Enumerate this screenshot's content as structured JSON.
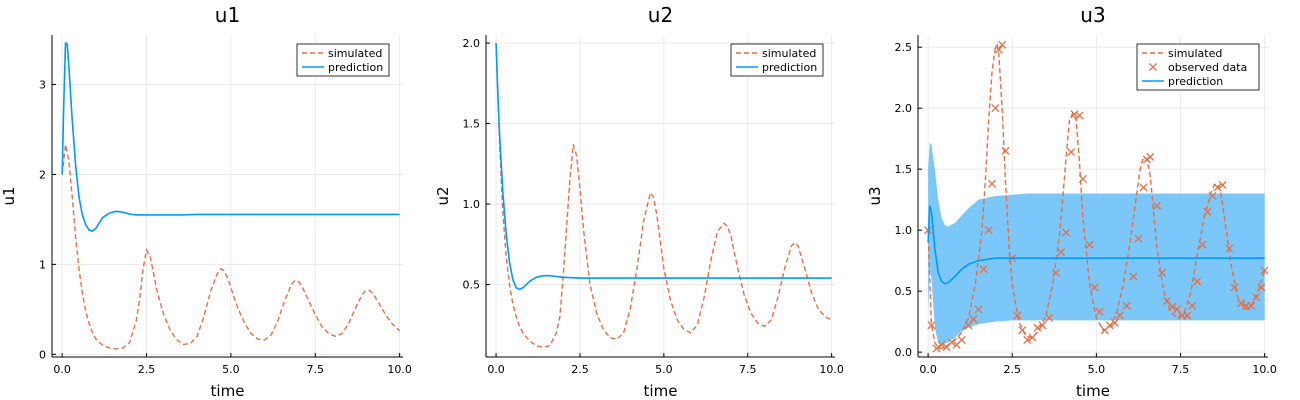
{
  "colors": {
    "simulated": "#e26f46",
    "observed": "#e26f46",
    "prediction": "#009af9",
    "band": "#7cc7f9",
    "grid": "#e6e6e6",
    "axis": "#000000",
    "legend_border": "#000000"
  },
  "chart_data": [
    {
      "type": "line",
      "title": "u1",
      "xlabel": "time",
      "ylabel": "u1",
      "xlim": [
        -0.3,
        10.1
      ],
      "ylim": [
        -0.03,
        3.55
      ],
      "xticks": [
        0.0,
        2.5,
        5.0,
        7.5,
        10.0
      ],
      "xtick_labels": [
        "0.0",
        "2.5",
        "5.0",
        "7.5",
        "10.0"
      ],
      "yticks": [
        0,
        1,
        2,
        3
      ],
      "ytick_labels": [
        "0",
        "1",
        "2",
        "3"
      ],
      "grid": true,
      "legend_position": "top-right",
      "legend": [
        "simulated",
        "prediction"
      ],
      "series": [
        {
          "name": "simulated",
          "style": "dashed",
          "x": [
            0.0,
            0.1,
            0.2,
            0.3,
            0.4,
            0.5,
            0.6,
            0.7,
            0.8,
            0.9,
            1.0,
            1.2,
            1.4,
            1.6,
            1.8,
            2.0,
            2.2,
            2.3,
            2.4,
            2.5,
            2.6,
            2.7,
            2.8,
            3.0,
            3.2,
            3.4,
            3.6,
            3.8,
            4.0,
            4.2,
            4.4,
            4.6,
            4.7,
            4.8,
            4.9,
            5.0,
            5.2,
            5.4,
            5.6,
            5.8,
            6.0,
            6.2,
            6.4,
            6.6,
            6.8,
            6.9,
            7.0,
            7.1,
            7.3,
            7.5,
            7.7,
            7.9,
            8.1,
            8.3,
            8.5,
            8.7,
            8.9,
            9.0,
            9.1,
            9.2,
            9.4,
            9.6,
            9.8,
            10.0
          ],
          "y": [
            2.0,
            2.33,
            2.15,
            1.75,
            1.3,
            0.95,
            0.68,
            0.48,
            0.34,
            0.24,
            0.17,
            0.1,
            0.07,
            0.06,
            0.07,
            0.13,
            0.38,
            0.62,
            0.95,
            1.16,
            1.1,
            0.92,
            0.72,
            0.45,
            0.27,
            0.16,
            0.11,
            0.12,
            0.2,
            0.42,
            0.7,
            0.9,
            0.95,
            0.93,
            0.85,
            0.74,
            0.52,
            0.35,
            0.23,
            0.17,
            0.16,
            0.22,
            0.38,
            0.6,
            0.78,
            0.82,
            0.81,
            0.76,
            0.6,
            0.44,
            0.31,
            0.23,
            0.2,
            0.23,
            0.35,
            0.52,
            0.67,
            0.71,
            0.71,
            0.68,
            0.56,
            0.43,
            0.33,
            0.26
          ]
        },
        {
          "name": "prediction",
          "style": "solid",
          "x": [
            0.0,
            0.05,
            0.1,
            0.15,
            0.2,
            0.3,
            0.4,
            0.5,
            0.6,
            0.7,
            0.8,
            0.9,
            1.0,
            1.1,
            1.2,
            1.4,
            1.6,
            1.8,
            2.0,
            2.2,
            2.5,
            3.0,
            3.5,
            4.0,
            5.0,
            6.0,
            7.0,
            8.0,
            9.0,
            10.0
          ],
          "y": [
            2.0,
            2.8,
            3.46,
            3.45,
            3.2,
            2.6,
            2.1,
            1.75,
            1.55,
            1.44,
            1.38,
            1.37,
            1.4,
            1.46,
            1.52,
            1.57,
            1.59,
            1.58,
            1.56,
            1.55,
            1.55,
            1.55,
            1.55,
            1.555,
            1.555,
            1.555,
            1.555,
            1.555,
            1.555,
            1.555
          ]
        }
      ]
    },
    {
      "type": "line",
      "title": "u2",
      "xlabel": "time",
      "ylabel": "u2",
      "xlim": [
        -0.3,
        10.1
      ],
      "ylim": [
        0.05,
        2.05
      ],
      "xticks": [
        0.0,
        2.5,
        5.0,
        7.5,
        10.0
      ],
      "xtick_labels": [
        "0.0",
        "2.5",
        "5.0",
        "7.5",
        "10.0"
      ],
      "yticks": [
        0.5,
        1.0,
        1.5,
        2.0
      ],
      "ytick_labels": [
        "0.5",
        "1.0",
        "1.5",
        "2.0"
      ],
      "grid": true,
      "legend_position": "top-right",
      "legend": [
        "simulated",
        "prediction"
      ],
      "series": [
        {
          "name": "simulated",
          "style": "dashed",
          "x": [
            0.0,
            0.05,
            0.1,
            0.2,
            0.3,
            0.4,
            0.5,
            0.6,
            0.7,
            0.8,
            1.0,
            1.2,
            1.4,
            1.6,
            1.8,
            1.9,
            2.0,
            2.1,
            2.2,
            2.3,
            2.4,
            2.5,
            2.6,
            2.8,
            3.0,
            3.2,
            3.4,
            3.6,
            3.8,
            4.0,
            4.2,
            4.4,
            4.6,
            4.7,
            4.8,
            5.0,
            5.2,
            5.4,
            5.6,
            5.8,
            6.0,
            6.2,
            6.4,
            6.6,
            6.8,
            6.9,
            7.0,
            7.2,
            7.4,
            7.6,
            7.8,
            8.0,
            8.2,
            8.4,
            8.6,
            8.8,
            8.9,
            9.0,
            9.2,
            9.4,
            9.6,
            9.8,
            10.0
          ],
          "y": [
            2.0,
            1.7,
            1.4,
            0.95,
            0.68,
            0.5,
            0.38,
            0.3,
            0.24,
            0.2,
            0.15,
            0.12,
            0.11,
            0.12,
            0.2,
            0.3,
            0.55,
            0.85,
            1.15,
            1.37,
            1.3,
            1.1,
            0.85,
            0.5,
            0.32,
            0.22,
            0.17,
            0.16,
            0.2,
            0.35,
            0.6,
            0.9,
            1.07,
            1.04,
            0.92,
            0.6,
            0.4,
            0.28,
            0.22,
            0.2,
            0.25,
            0.42,
            0.65,
            0.83,
            0.88,
            0.86,
            0.8,
            0.6,
            0.43,
            0.32,
            0.26,
            0.24,
            0.28,
            0.42,
            0.6,
            0.74,
            0.76,
            0.74,
            0.6,
            0.45,
            0.35,
            0.3,
            0.28
          ]
        },
        {
          "name": "prediction",
          "style": "solid",
          "x": [
            0.0,
            0.05,
            0.1,
            0.2,
            0.3,
            0.4,
            0.5,
            0.6,
            0.7,
            0.8,
            0.9,
            1.0,
            1.2,
            1.4,
            1.6,
            1.8,
            2.0,
            2.5,
            3.0,
            4.0,
            5.0,
            6.0,
            7.0,
            8.0,
            9.0,
            10.0
          ],
          "y": [
            2.0,
            1.7,
            1.45,
            1.08,
            0.82,
            0.64,
            0.53,
            0.48,
            0.47,
            0.48,
            0.5,
            0.52,
            0.545,
            0.555,
            0.555,
            0.55,
            0.545,
            0.54,
            0.54,
            0.54,
            0.54,
            0.54,
            0.54,
            0.54,
            0.54,
            0.54
          ]
        }
      ]
    },
    {
      "type": "line",
      "title": "u3",
      "xlabel": "time",
      "ylabel": "u3",
      "xlim": [
        -0.3,
        10.1
      ],
      "ylim": [
        -0.04,
        2.6
      ],
      "xticks": [
        0.0,
        2.5,
        5.0,
        7.5,
        10.0
      ],
      "xtick_labels": [
        "0.0",
        "2.5",
        "5.0",
        "7.5",
        "10.0"
      ],
      "yticks": [
        0.0,
        0.5,
        1.0,
        1.5,
        2.0,
        2.5
      ],
      "ytick_labels": [
        "0.0",
        "0.5",
        "1.0",
        "1.5",
        "2.0",
        "2.5"
      ],
      "grid": true,
      "legend_position": "top-right",
      "legend": [
        "simulated",
        "observed data",
        "prediction"
      ],
      "series": [
        {
          "name": "simulated",
          "style": "dashed",
          "x": [
            0.0,
            0.1,
            0.2,
            0.3,
            0.4,
            0.5,
            0.6,
            0.8,
            1.0,
            1.2,
            1.4,
            1.6,
            1.7,
            1.8,
            1.9,
            2.0,
            2.05,
            2.1,
            2.2,
            2.3,
            2.4,
            2.5,
            2.7,
            2.9,
            3.1,
            3.3,
            3.5,
            3.7,
            3.9,
            4.0,
            4.1,
            4.2,
            4.3,
            4.4,
            4.5,
            4.6,
            4.8,
            5.0,
            5.2,
            5.4,
            5.6,
            5.8,
            6.0,
            6.2,
            6.3,
            6.4,
            6.5,
            6.6,
            6.7,
            6.8,
            7.0,
            7.2,
            7.4,
            7.6,
            7.8,
            8.0,
            8.2,
            8.4,
            8.5,
            8.6,
            8.7,
            8.8,
            9.0,
            9.2,
            9.4,
            9.6,
            9.8,
            10.0
          ],
          "y": [
            1.0,
            0.22,
            0.08,
            0.03,
            0.03,
            0.04,
            0.06,
            0.1,
            0.16,
            0.28,
            0.55,
            1.0,
            1.4,
            1.9,
            2.3,
            2.5,
            2.52,
            2.45,
            2.0,
            1.4,
            0.9,
            0.55,
            0.25,
            0.13,
            0.12,
            0.18,
            0.3,
            0.55,
            0.95,
            1.25,
            1.6,
            1.9,
            1.96,
            1.9,
            1.55,
            1.1,
            0.55,
            0.28,
            0.18,
            0.2,
            0.32,
            0.55,
            0.9,
            1.3,
            1.5,
            1.6,
            1.58,
            1.45,
            1.15,
            0.85,
            0.5,
            0.33,
            0.28,
            0.32,
            0.48,
            0.8,
            1.1,
            1.3,
            1.37,
            1.38,
            1.3,
            1.12,
            0.72,
            0.45,
            0.35,
            0.37,
            0.5,
            0.66
          ]
        },
        {
          "name": "observed data",
          "style": "markers",
          "x": [
            0.0,
            0.1,
            0.25,
            0.4,
            0.55,
            0.7,
            0.85,
            1.0,
            1.2,
            1.35,
            1.5,
            1.65,
            1.8,
            1.9,
            2.0,
            2.1,
            2.2,
            2.3,
            2.5,
            2.65,
            2.8,
            2.95,
            3.1,
            3.25,
            3.4,
            3.6,
            3.8,
            3.95,
            4.1,
            4.25,
            4.35,
            4.5,
            4.6,
            4.8,
            4.95,
            5.1,
            5.25,
            5.4,
            5.55,
            5.7,
            5.9,
            6.1,
            6.25,
            6.4,
            6.5,
            6.6,
            6.8,
            6.95,
            7.1,
            7.25,
            7.4,
            7.55,
            7.7,
            7.85,
            8.0,
            8.15,
            8.3,
            8.45,
            8.6,
            8.75,
            8.95,
            9.1,
            9.3,
            9.45,
            9.6,
            9.75,
            9.9,
            10.0
          ],
          "y": [
            1.0,
            0.22,
            0.03,
            0.06,
            0.04,
            0.08,
            0.06,
            0.1,
            0.22,
            0.27,
            0.35,
            0.68,
            1.0,
            1.38,
            2.0,
            2.48,
            2.52,
            1.65,
            0.77,
            0.3,
            0.18,
            0.1,
            0.12,
            0.2,
            0.22,
            0.28,
            0.65,
            0.82,
            0.98,
            1.64,
            1.95,
            1.94,
            1.42,
            0.88,
            0.53,
            0.33,
            0.18,
            0.22,
            0.24,
            0.3,
            0.38,
            0.62,
            0.93,
            1.35,
            1.58,
            1.6,
            1.2,
            0.65,
            0.42,
            0.37,
            0.35,
            0.3,
            0.3,
            0.38,
            0.58,
            0.88,
            1.15,
            1.28,
            1.35,
            1.37,
            0.85,
            0.53,
            0.4,
            0.38,
            0.38,
            0.45,
            0.53,
            0.67
          ]
        },
        {
          "name": "prediction",
          "style": "solid",
          "x": [
            0.0,
            0.05,
            0.1,
            0.2,
            0.3,
            0.4,
            0.5,
            0.6,
            0.8,
            1.0,
            1.2,
            1.5,
            2.0,
            2.5,
            3.0,
            4.0,
            5.0,
            6.0,
            7.0,
            8.0,
            9.0,
            10.0
          ],
          "y": [
            0.9,
            1.2,
            1.15,
            0.85,
            0.65,
            0.58,
            0.56,
            0.57,
            0.62,
            0.68,
            0.72,
            0.75,
            0.77,
            0.77,
            0.77,
            0.77,
            0.77,
            0.77,
            0.77,
            0.77,
            0.77,
            0.77
          ]
        },
        {
          "name": "prediction band",
          "style": "band",
          "x": [
            0.0,
            0.05,
            0.1,
            0.2,
            0.3,
            0.4,
            0.5,
            0.6,
            0.8,
            1.0,
            1.2,
            1.5,
            2.0,
            2.5,
            3.0,
            4.0,
            5.0,
            6.0,
            7.0,
            8.0,
            9.0,
            10.0
          ],
          "lower": [
            0.3,
            0.7,
            0.6,
            0.2,
            0.08,
            0.06,
            0.07,
            0.08,
            0.12,
            0.17,
            0.2,
            0.23,
            0.25,
            0.26,
            0.26,
            0.26,
            0.26,
            0.26,
            0.26,
            0.26,
            0.26,
            0.26
          ],
          "upper": [
            1.5,
            1.72,
            1.7,
            1.5,
            1.25,
            1.1,
            1.04,
            1.03,
            1.06,
            1.12,
            1.18,
            1.25,
            1.28,
            1.29,
            1.3,
            1.3,
            1.3,
            1.3,
            1.3,
            1.3,
            1.3,
            1.3
          ]
        }
      ]
    }
  ]
}
